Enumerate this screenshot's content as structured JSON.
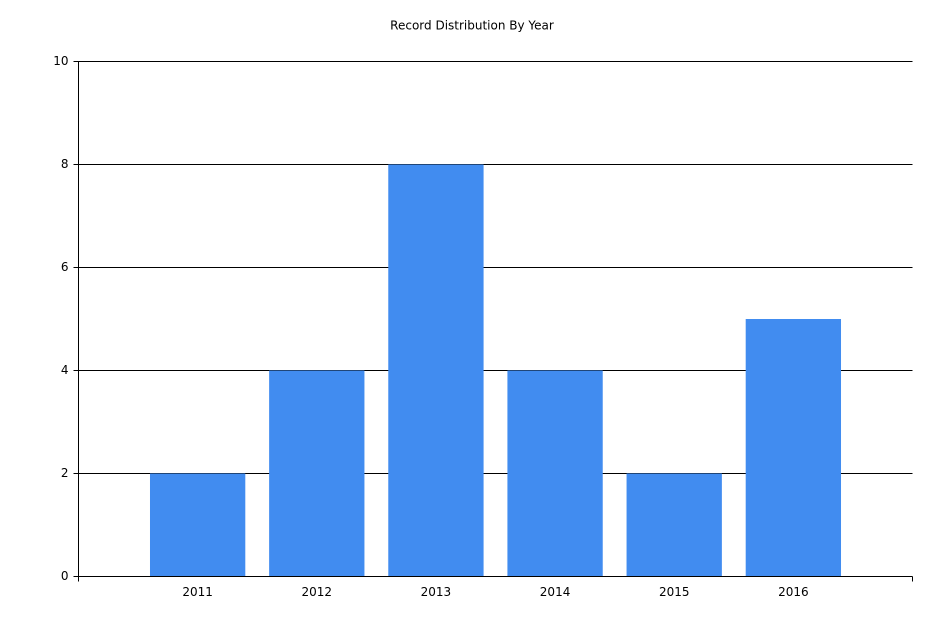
{
  "chart_data": {
    "type": "bar",
    "title": "Record Distribution By Year",
    "categories": [
      "2011",
      "2012",
      "2013",
      "2014",
      "2015",
      "2016"
    ],
    "values": [
      2,
      4,
      8,
      4,
      2,
      5
    ],
    "color": "#418cf0",
    "ylim": [
      0,
      10
    ],
    "yticks": [
      0,
      2,
      4,
      6,
      8,
      10
    ],
    "grid": true
  }
}
